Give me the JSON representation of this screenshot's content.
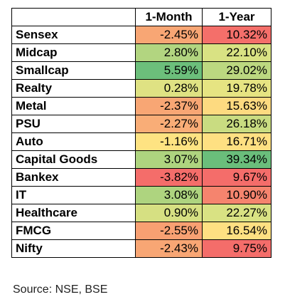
{
  "table": {
    "headers": [
      "",
      "1-Month",
      "1-Year"
    ],
    "rows": [
      {
        "name": "Sensex",
        "m1": "-2.45%",
        "m1_color": "#f8a674",
        "y1": "10.32%",
        "y1_color": "#f46f6a"
      },
      {
        "name": "Midcap",
        "m1": "2.80%",
        "m1_color": "#b2d580",
        "y1": "22.10%",
        "y1_color": "#d9e283"
      },
      {
        "name": "Smallcap",
        "m1": "5.59%",
        "m1_color": "#6cbf7b",
        "y1": "29.02%",
        "y1_color": "#bcd880"
      },
      {
        "name": "Realty",
        "m1": "0.28%",
        "m1_color": "#dfe283",
        "y1": "19.78%",
        "y1_color": "#e6e482"
      },
      {
        "name": "Metal",
        "m1": "-2.37%",
        "m1_color": "#f8a674",
        "y1": "15.63%",
        "y1_color": "#fdda80"
      },
      {
        "name": "PSU",
        "m1": "-2.27%",
        "m1_color": "#f9ad77",
        "y1": "26.18%",
        "y1_color": "#c9dc81"
      },
      {
        "name": "Auto",
        "m1": "-1.16%",
        "m1_color": "#fee382",
        "y1": "16.71%",
        "y1_color": "#fee082"
      },
      {
        "name": "Capital Goods",
        "m1": "3.07%",
        "m1_color": "#aed47f",
        "y1": "39.34%",
        "y1_color": "#6abe7b"
      },
      {
        "name": "Bankex",
        "m1": "-3.82%",
        "m1_color": "#f46d6a",
        "y1": "9.67%",
        "y1_color": "#f46d6a"
      },
      {
        "name": "IT",
        "m1": "3.08%",
        "m1_color": "#aed47f",
        "y1": "10.90%",
        "y1_color": "#f5846e"
      },
      {
        "name": "Healthcare",
        "m1": "0.90%",
        "m1_color": "#d6e082",
        "y1": "22.27%",
        "y1_color": "#d9e283"
      },
      {
        "name": "FMCG",
        "m1": "-2.55%",
        "m1_color": "#f8a072",
        "y1": "16.54%",
        "y1_color": "#fee082"
      },
      {
        "name": "Nifty",
        "m1": "-2.43%",
        "m1_color": "#f8a674",
        "y1": "9.75%",
        "y1_color": "#f46d6a"
      }
    ]
  },
  "footer": {
    "source": "Source: NSE, BSE"
  }
}
